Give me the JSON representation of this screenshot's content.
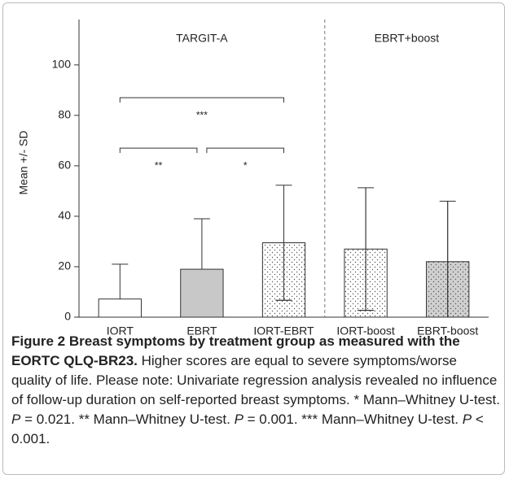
{
  "chart_data": {
    "type": "bar",
    "y_label": "Mean +/- SD",
    "categories": [
      "IORT",
      "EBRT",
      "IORT-EBRT",
      "IORT-boost",
      "EBRT-boost"
    ],
    "values": [
      7.2,
      19,
      29.5,
      27,
      22
    ],
    "errors": [
      13.8,
      20,
      22.8,
      24.3,
      24
    ],
    "colors": [
      "#ffffff",
      "#c8c8c8",
      "#ffffff",
      "#ffffff",
      "#c8c8c8"
    ],
    "patterns": [
      "none",
      "none",
      "dots",
      "dots",
      "dots"
    ],
    "ylim": [
      0,
      118
    ],
    "yticks": [
      0,
      20,
      40,
      60,
      80,
      100
    ],
    "groups": [
      {
        "label": "TARGIT-A",
        "from": 0,
        "to": 2
      },
      {
        "label": "EBRT+boost",
        "from": 3,
        "to": 4
      }
    ],
    "brackets": [
      {
        "from": 0,
        "to": 2,
        "y": 87,
        "label": "***"
      },
      {
        "from": 0,
        "to": 1,
        "y": 67,
        "label": "**"
      },
      {
        "from": 1,
        "to": 2,
        "y": 67,
        "label": "*"
      }
    ]
  },
  "caption": {
    "title": "Figure 2 Breast symptoms by treatment group as measured with the EORTC QLQ-BR23.",
    "parts": [
      {
        "text": " Higher scores are equal to severe symptoms/worse quality of life. Please note: Univariate regression analysis revealed no influence of follow-up duration on self-reported breast symptoms. * Mann–Whitney U-test. ",
        "italic": false
      },
      {
        "text": "P",
        "italic": true
      },
      {
        "text": " = 0.021. ** Mann–Whitney U-test. ",
        "italic": false
      },
      {
        "text": "P",
        "italic": true
      },
      {
        "text": " = 0.001. *** Mann–Whitney U-test. ",
        "italic": false
      },
      {
        "text": "P",
        "italic": true
      },
      {
        "text": " < 0.001.",
        "italic": false
      }
    ]
  }
}
